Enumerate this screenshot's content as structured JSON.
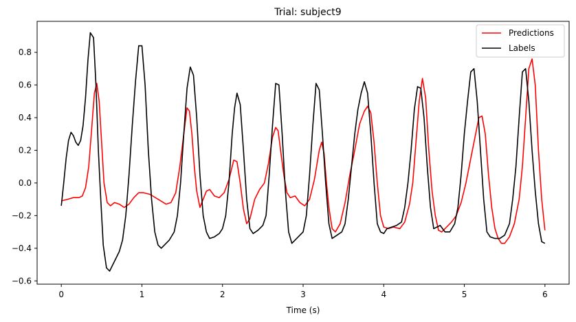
{
  "chart_data": {
    "type": "line",
    "title": "Trial: subject9",
    "xlabel": "Time (s)",
    "ylabel": "",
    "xlim": [
      -0.3,
      6.3
    ],
    "ylim": [
      -0.62,
      0.99
    ],
    "xticks": [
      0,
      1,
      2,
      3,
      4,
      5,
      6
    ],
    "yticks": [
      -0.6,
      -0.4,
      -0.2,
      0.0,
      0.2,
      0.4,
      0.6,
      0.8
    ],
    "ytick_labels": [
      "−0.6",
      "−0.4",
      "−0.2",
      "0.0",
      "0.2",
      "0.4",
      "0.6",
      "0.8"
    ],
    "grid": false,
    "legend_position": "top-right",
    "series": [
      {
        "name": "Predictions",
        "color": "#ff0000",
        "points": [
          [
            0,
            -0.11
          ],
          [
            0.08,
            -0.1
          ],
          [
            0.15,
            -0.09
          ],
          [
            0.22,
            -0.09
          ],
          [
            0.26,
            -0.08
          ],
          [
            0.3,
            -0.03
          ],
          [
            0.34,
            0.1
          ],
          [
            0.38,
            0.35
          ],
          [
            0.41,
            0.55
          ],
          [
            0.44,
            0.61
          ],
          [
            0.47,
            0.5
          ],
          [
            0.5,
            0.25
          ],
          [
            0.53,
            0.0
          ],
          [
            0.57,
            -0.12
          ],
          [
            0.61,
            -0.14
          ],
          [
            0.66,
            -0.12
          ],
          [
            0.72,
            -0.13
          ],
          [
            0.78,
            -0.15
          ],
          [
            0.84,
            -0.13
          ],
          [
            0.9,
            -0.09
          ],
          [
            0.96,
            -0.06
          ],
          [
            1.02,
            -0.06
          ],
          [
            1.1,
            -0.07
          ],
          [
            1.2,
            -0.1
          ],
          [
            1.3,
            -0.13
          ],
          [
            1.36,
            -0.12
          ],
          [
            1.42,
            -0.06
          ],
          [
            1.47,
            0.1
          ],
          [
            1.52,
            0.3
          ],
          [
            1.56,
            0.46
          ],
          [
            1.59,
            0.44
          ],
          [
            1.62,
            0.3
          ],
          [
            1.65,
            0.1
          ],
          [
            1.68,
            -0.05
          ],
          [
            1.72,
            -0.15
          ],
          [
            1.76,
            -0.1
          ],
          [
            1.8,
            -0.05
          ],
          [
            1.84,
            -0.04
          ],
          [
            1.9,
            -0.08
          ],
          [
            1.96,
            -0.09
          ],
          [
            2.02,
            -0.06
          ],
          [
            2.08,
            0.02
          ],
          [
            2.14,
            0.14
          ],
          [
            2.18,
            0.13
          ],
          [
            2.22,
            0.0
          ],
          [
            2.26,
            -0.16
          ],
          [
            2.3,
            -0.25
          ],
          [
            2.34,
            -0.22
          ],
          [
            2.4,
            -0.1
          ],
          [
            2.46,
            -0.04
          ],
          [
            2.52,
            0.0
          ],
          [
            2.57,
            0.12
          ],
          [
            2.62,
            0.28
          ],
          [
            2.66,
            0.34
          ],
          [
            2.69,
            0.32
          ],
          [
            2.72,
            0.2
          ],
          [
            2.76,
            0.05
          ],
          [
            2.8,
            -0.06
          ],
          [
            2.84,
            -0.09
          ],
          [
            2.9,
            -0.08
          ],
          [
            2.96,
            -0.12
          ],
          [
            3.02,
            -0.14
          ],
          [
            3.08,
            -0.1
          ],
          [
            3.14,
            0.02
          ],
          [
            3.2,
            0.2
          ],
          [
            3.23,
            0.25
          ],
          [
            3.26,
            0.18
          ],
          [
            3.29,
            0.0
          ],
          [
            3.32,
            -0.15
          ],
          [
            3.36,
            -0.28
          ],
          [
            3.4,
            -0.3
          ],
          [
            3.46,
            -0.25
          ],
          [
            3.52,
            -0.12
          ],
          [
            3.58,
            0.05
          ],
          [
            3.64,
            0.2
          ],
          [
            3.7,
            0.36
          ],
          [
            3.76,
            0.44
          ],
          [
            3.8,
            0.47
          ],
          [
            3.84,
            0.43
          ],
          [
            3.88,
            0.25
          ],
          [
            3.92,
            0.0
          ],
          [
            3.96,
            -0.2
          ],
          [
            4.0,
            -0.27
          ],
          [
            4.06,
            -0.28
          ],
          [
            4.12,
            -0.27
          ],
          [
            4.2,
            -0.28
          ],
          [
            4.26,
            -0.24
          ],
          [
            4.32,
            -0.13
          ],
          [
            4.36,
            0.0
          ],
          [
            4.4,
            0.25
          ],
          [
            4.44,
            0.5
          ],
          [
            4.48,
            0.64
          ],
          [
            4.52,
            0.52
          ],
          [
            4.56,
            0.2
          ],
          [
            4.6,
            -0.05
          ],
          [
            4.64,
            -0.2
          ],
          [
            4.68,
            -0.29
          ],
          [
            4.72,
            -0.3
          ],
          [
            4.78,
            -0.27
          ],
          [
            4.84,
            -0.24
          ],
          [
            4.9,
            -0.2
          ],
          [
            4.96,
            -0.12
          ],
          [
            5.02,
            0.0
          ],
          [
            5.08,
            0.15
          ],
          [
            5.14,
            0.3
          ],
          [
            5.18,
            0.4
          ],
          [
            5.22,
            0.41
          ],
          [
            5.26,
            0.3
          ],
          [
            5.3,
            0.05
          ],
          [
            5.34,
            -0.15
          ],
          [
            5.38,
            -0.28
          ],
          [
            5.42,
            -0.34
          ],
          [
            5.46,
            -0.37
          ],
          [
            5.5,
            -0.37
          ],
          [
            5.56,
            -0.33
          ],
          [
            5.62,
            -0.25
          ],
          [
            5.68,
            -0.1
          ],
          [
            5.72,
            0.1
          ],
          [
            5.76,
            0.4
          ],
          [
            5.8,
            0.7
          ],
          [
            5.84,
            0.76
          ],
          [
            5.88,
            0.6
          ],
          [
            5.92,
            0.2
          ],
          [
            5.96,
            -0.1
          ],
          [
            6.0,
            -0.29
          ]
        ]
      },
      {
        "name": "Labels",
        "color": "#000000",
        "points": [
          [
            0,
            -0.14
          ],
          [
            0.03,
            0.0
          ],
          [
            0.06,
            0.15
          ],
          [
            0.09,
            0.26
          ],
          [
            0.12,
            0.31
          ],
          [
            0.15,
            0.29
          ],
          [
            0.18,
            0.25
          ],
          [
            0.21,
            0.23
          ],
          [
            0.24,
            0.26
          ],
          [
            0.27,
            0.35
          ],
          [
            0.3,
            0.52
          ],
          [
            0.33,
            0.75
          ],
          [
            0.36,
            0.92
          ],
          [
            0.4,
            0.89
          ],
          [
            0.43,
            0.6
          ],
          [
            0.46,
            0.2
          ],
          [
            0.49,
            -0.1
          ],
          [
            0.52,
            -0.38
          ],
          [
            0.56,
            -0.52
          ],
          [
            0.6,
            -0.54
          ],
          [
            0.64,
            -0.5
          ],
          [
            0.68,
            -0.46
          ],
          [
            0.72,
            -0.42
          ],
          [
            0.76,
            -0.35
          ],
          [
            0.8,
            -0.2
          ],
          [
            0.84,
            0.05
          ],
          [
            0.88,
            0.35
          ],
          [
            0.92,
            0.62
          ],
          [
            0.96,
            0.84
          ],
          [
            1.0,
            0.84
          ],
          [
            1.04,
            0.6
          ],
          [
            1.08,
            0.2
          ],
          [
            1.12,
            -0.1
          ],
          [
            1.16,
            -0.3
          ],
          [
            1.2,
            -0.38
          ],
          [
            1.24,
            -0.4
          ],
          [
            1.28,
            -0.38
          ],
          [
            1.34,
            -0.35
          ],
          [
            1.4,
            -0.3
          ],
          [
            1.44,
            -0.2
          ],
          [
            1.48,
            0.0
          ],
          [
            1.52,
            0.3
          ],
          [
            1.56,
            0.58
          ],
          [
            1.6,
            0.71
          ],
          [
            1.64,
            0.66
          ],
          [
            1.68,
            0.4
          ],
          [
            1.72,
            0.05
          ],
          [
            1.76,
            -0.2
          ],
          [
            1.8,
            -0.3
          ],
          [
            1.84,
            -0.34
          ],
          [
            1.9,
            -0.33
          ],
          [
            1.96,
            -0.31
          ],
          [
            2.0,
            -0.28
          ],
          [
            2.04,
            -0.2
          ],
          [
            2.08,
            0.0
          ],
          [
            2.12,
            0.3
          ],
          [
            2.15,
            0.46
          ],
          [
            2.18,
            0.55
          ],
          [
            2.22,
            0.48
          ],
          [
            2.26,
            0.2
          ],
          [
            2.3,
            -0.1
          ],
          [
            2.34,
            -0.28
          ],
          [
            2.38,
            -0.31
          ],
          [
            2.44,
            -0.29
          ],
          [
            2.5,
            -0.26
          ],
          [
            2.54,
            -0.2
          ],
          [
            2.58,
            0.05
          ],
          [
            2.62,
            0.35
          ],
          [
            2.66,
            0.61
          ],
          [
            2.7,
            0.6
          ],
          [
            2.74,
            0.3
          ],
          [
            2.78,
            -0.05
          ],
          [
            2.82,
            -0.3
          ],
          [
            2.86,
            -0.37
          ],
          [
            2.9,
            -0.35
          ],
          [
            2.96,
            -0.32
          ],
          [
            3.0,
            -0.3
          ],
          [
            3.04,
            -0.2
          ],
          [
            3.08,
            0.05
          ],
          [
            3.12,
            0.35
          ],
          [
            3.16,
            0.61
          ],
          [
            3.2,
            0.57
          ],
          [
            3.24,
            0.3
          ],
          [
            3.28,
            0.0
          ],
          [
            3.32,
            -0.25
          ],
          [
            3.36,
            -0.34
          ],
          [
            3.42,
            -0.32
          ],
          [
            3.48,
            -0.3
          ],
          [
            3.52,
            -0.25
          ],
          [
            3.56,
            -0.1
          ],
          [
            3.6,
            0.1
          ],
          [
            3.64,
            0.3
          ],
          [
            3.68,
            0.45
          ],
          [
            3.72,
            0.55
          ],
          [
            3.76,
            0.62
          ],
          [
            3.8,
            0.55
          ],
          [
            3.84,
            0.3
          ],
          [
            3.88,
            0.0
          ],
          [
            3.92,
            -0.25
          ],
          [
            3.96,
            -0.3
          ],
          [
            4.0,
            -0.31
          ],
          [
            4.04,
            -0.28
          ],
          [
            4.1,
            -0.27
          ],
          [
            4.16,
            -0.26
          ],
          [
            4.22,
            -0.24
          ],
          [
            4.26,
            -0.15
          ],
          [
            4.3,
            0.0
          ],
          [
            4.34,
            0.2
          ],
          [
            4.38,
            0.45
          ],
          [
            4.42,
            0.59
          ],
          [
            4.46,
            0.58
          ],
          [
            4.5,
            0.4
          ],
          [
            4.54,
            0.1
          ],
          [
            4.58,
            -0.15
          ],
          [
            4.62,
            -0.28
          ],
          [
            4.66,
            -0.27
          ],
          [
            4.7,
            -0.26
          ],
          [
            4.76,
            -0.3
          ],
          [
            4.82,
            -0.3
          ],
          [
            4.88,
            -0.25
          ],
          [
            4.92,
            -0.15
          ],
          [
            4.96,
            0.05
          ],
          [
            5.0,
            0.3
          ],
          [
            5.04,
            0.5
          ],
          [
            5.08,
            0.68
          ],
          [
            5.12,
            0.7
          ],
          [
            5.16,
            0.5
          ],
          [
            5.2,
            0.2
          ],
          [
            5.24,
            -0.1
          ],
          [
            5.28,
            -0.3
          ],
          [
            5.32,
            -0.33
          ],
          [
            5.38,
            -0.34
          ],
          [
            5.44,
            -0.34
          ],
          [
            5.5,
            -0.32
          ],
          [
            5.56,
            -0.25
          ],
          [
            5.6,
            -0.1
          ],
          [
            5.64,
            0.1
          ],
          [
            5.68,
            0.4
          ],
          [
            5.72,
            0.68
          ],
          [
            5.76,
            0.7
          ],
          [
            5.8,
            0.5
          ],
          [
            5.84,
            0.2
          ],
          [
            5.88,
            -0.05
          ],
          [
            5.92,
            -0.25
          ],
          [
            5.96,
            -0.36
          ],
          [
            6.0,
            -0.37
          ]
        ]
      }
    ]
  }
}
